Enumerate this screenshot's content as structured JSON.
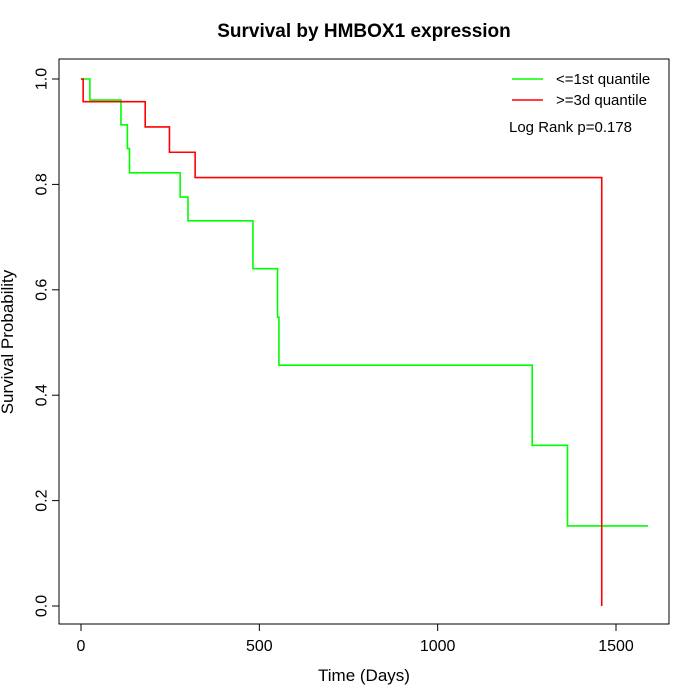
{
  "chart_data": {
    "type": "line",
    "title": "Survival by HMBOX1 expression",
    "xlabel": "Time (Days)",
    "ylabel": "Survival Probability",
    "xlim": [
      0,
      1590
    ],
    "ylim": [
      0,
      1
    ],
    "xticks": [
      0,
      500,
      1000,
      1500
    ],
    "yticks": [
      0.0,
      0.2,
      0.4,
      0.6,
      0.8,
      1.0
    ],
    "ytick_labels": [
      "0.0",
      "0.2",
      "0.4",
      "0.6",
      "0.8",
      "1.0"
    ],
    "xtick_labels": [
      "0",
      "500",
      "1000",
      "1500"
    ],
    "grid": false,
    "legend_position": "top-right",
    "annotation": "Log Rank p=0.178",
    "series": [
      {
        "name": "<=1st quantile",
        "color": "#00ff00",
        "step": true,
        "x": [
          0,
          25,
          112,
          130,
          136,
          278,
          300,
          482,
          551,
          555,
          1265,
          1364,
          1590
        ],
        "y": [
          1.0,
          0.96,
          0.913,
          0.868,
          0.822,
          0.776,
          0.731,
          0.64,
          0.548,
          0.457,
          0.305,
          0.152,
          0.152
        ]
      },
      {
        "name": ">=3d quantile",
        "color": "#ff0000",
        "step": true,
        "x": [
          0,
          6,
          180,
          248,
          320,
          1460,
          1460
        ],
        "y": [
          1.0,
          0.957,
          0.909,
          0.861,
          0.813,
          0.813,
          0.0
        ]
      }
    ]
  }
}
